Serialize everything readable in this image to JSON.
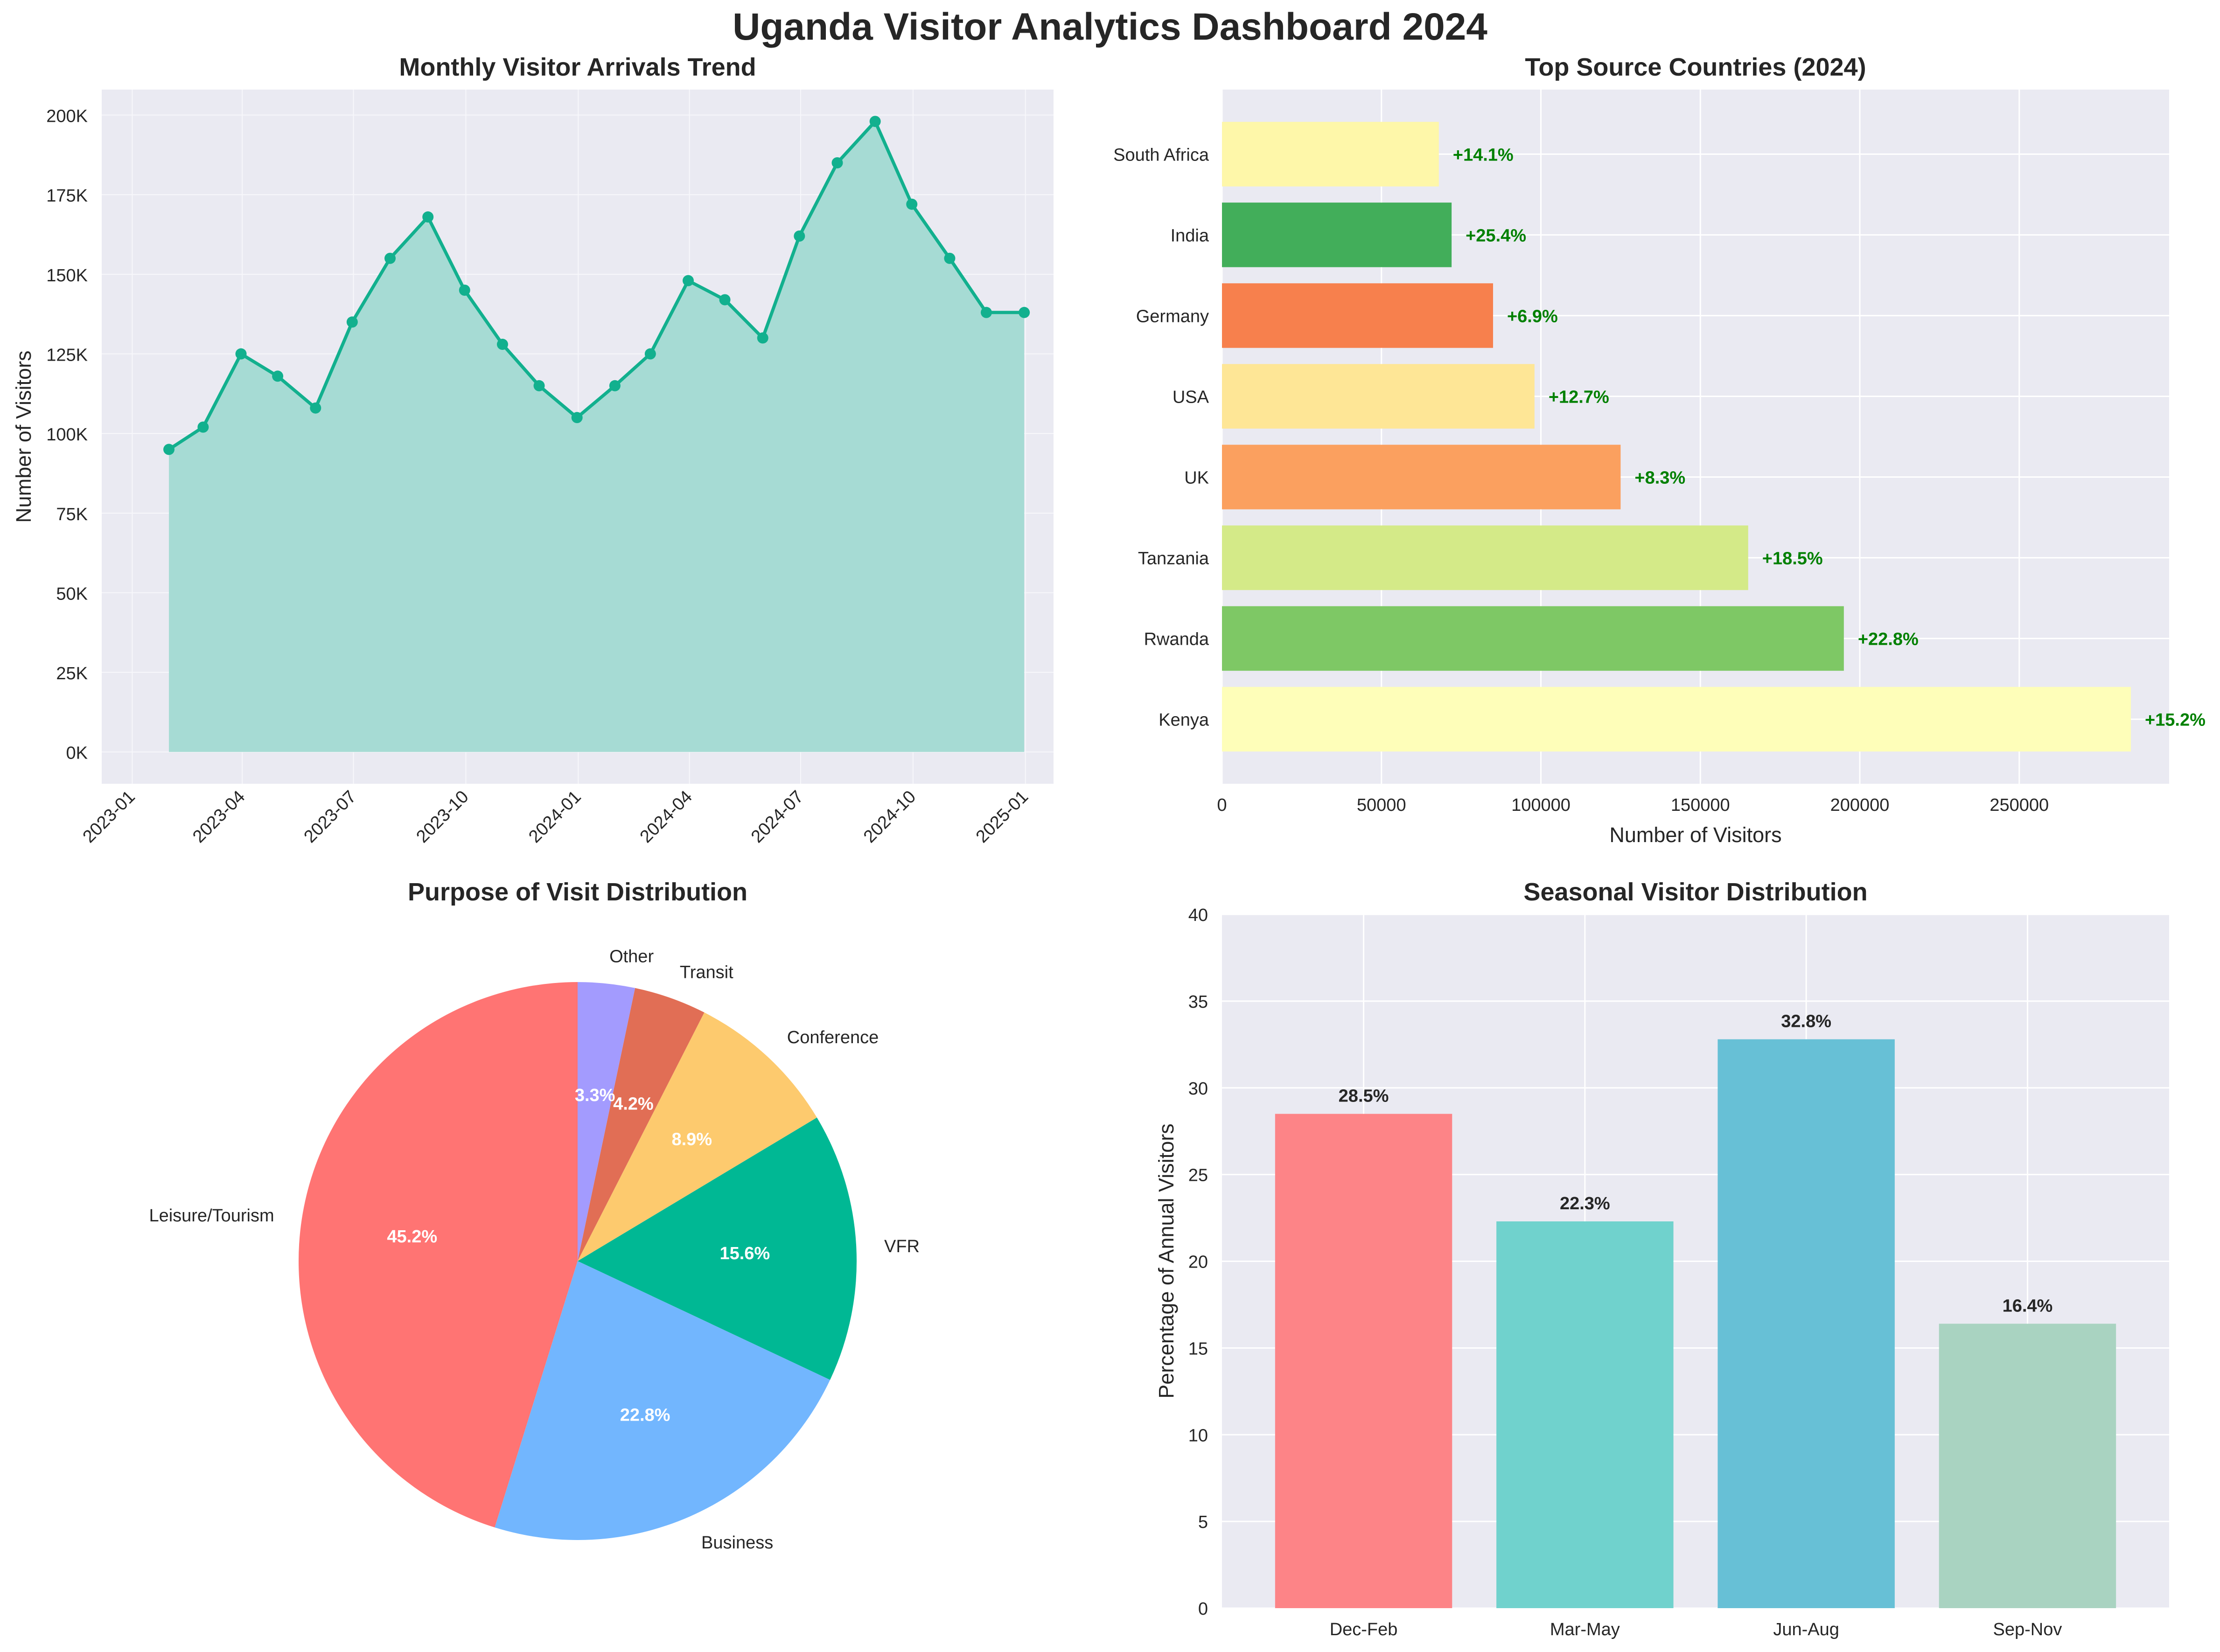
{
  "title": "Uganda Visitor Analytics Dashboard 2024",
  "colors": {
    "panel_bg": "#EAEAF2",
    "grid": "#FFFFFF",
    "text": "#262626",
    "line": "#12B08E",
    "area": "#A6DBD4",
    "growth_text": "#008000"
  },
  "chart_data": [
    {
      "type": "line",
      "title": "Monthly Visitor Arrivals Trend",
      "xlabel": "",
      "ylabel": "Number of Visitors",
      "x": [
        "2023-01-31",
        "2023-02-28",
        "2023-03-31",
        "2023-04-30",
        "2023-05-31",
        "2023-06-30",
        "2023-07-31",
        "2023-08-31",
        "2023-09-30",
        "2023-10-31",
        "2023-11-30",
        "2023-12-31",
        "2024-01-31",
        "2024-02-29",
        "2024-03-31",
        "2024-04-30",
        "2024-05-31",
        "2024-06-30",
        "2024-07-31",
        "2024-08-31",
        "2024-09-30",
        "2024-10-31",
        "2024-11-30",
        "2024-12-31"
      ],
      "series": [
        {
          "values": [
            95000,
            102000,
            125000,
            118000,
            108000,
            135000,
            155000,
            168000,
            145000,
            128000,
            115000,
            105000,
            115000,
            125000,
            148000,
            142000,
            130000,
            162000,
            185000,
            198000,
            172000,
            155000,
            138000,
            138000
          ]
        }
      ],
      "xlim": [
        "2022-12-07",
        "2025-01-24"
      ],
      "ylim": [
        -10000,
        208000
      ],
      "x_ticks": [
        "2023-01",
        "2023-04",
        "2023-07",
        "2023-10",
        "2024-01",
        "2024-04",
        "2024-07",
        "2024-10",
        "2025-01"
      ],
      "y_ticks": [
        0,
        25000,
        50000,
        75000,
        100000,
        125000,
        150000,
        175000,
        200000
      ],
      "y_tick_labels": [
        "0K",
        "25K",
        "50K",
        "75K",
        "100K",
        "125K",
        "150K",
        "175K",
        "200K"
      ],
      "fill_under": true,
      "markers": true,
      "grid": true
    },
    {
      "type": "bar",
      "orientation": "horizontal",
      "title": "Top Source Countries (2024)",
      "xlabel": "Number of Visitors",
      "ylabel": "",
      "categories": [
        "Kenya",
        "Rwanda",
        "Tanzania",
        "UK",
        "USA",
        "Germany",
        "India",
        "South Africa"
      ],
      "values": [
        285000,
        195000,
        165000,
        125000,
        98000,
        85000,
        72000,
        68000
      ],
      "growth_labels": [
        "+15.2%",
        "+22.8%",
        "+18.5%",
        "+8.3%",
        "+12.7%",
        "+6.9%",
        "+25.4%",
        "+14.1%"
      ],
      "bar_colors": [
        "#FEFEB9",
        "#7EC865",
        "#D4EA88",
        "#FBA05F",
        "#FEE696",
        "#F7804D",
        "#42AE5A",
        "#FEF7A9"
      ],
      "xlim": [
        0,
        297000
      ],
      "x_ticks": [
        0,
        50000,
        100000,
        150000,
        200000,
        250000
      ],
      "x_tick_labels": [
        "0",
        "50000",
        "100000",
        "150000",
        "200000",
        "250000"
      ],
      "grid": true
    },
    {
      "type": "pie",
      "title": "Purpose of Visit Distribution",
      "labels": [
        "Leisure/Tourism",
        "Business",
        "VFR",
        "Conference",
        "Transit",
        "Other"
      ],
      "values": [
        45.2,
        22.8,
        15.6,
        8.9,
        4.2,
        3.3
      ],
      "pct_labels": [
        "45.2%",
        "22.8%",
        "15.6%",
        "8.9%",
        "4.2%",
        "3.3%"
      ],
      "colors": [
        "#FF7473",
        "#72B6FE",
        "#00B894",
        "#FDCA6E",
        "#E16E55",
        "#A39BFE"
      ],
      "start_angle": 90,
      "direction": "counterclockwise"
    },
    {
      "type": "bar",
      "title": "Seasonal Visitor Distribution",
      "xlabel": "",
      "ylabel": "Percentage of Annual Visitors",
      "categories": [
        "Dec-Feb",
        "Mar-May",
        "Jun-Aug",
        "Sep-Nov"
      ],
      "values": [
        28.5,
        22.3,
        32.8,
        16.4
      ],
      "value_labels": [
        "28.5%",
        "22.3%",
        "32.8%",
        "16.4%"
      ],
      "bar_colors": [
        "#FD8487",
        "#70D2CD",
        "#67C0D6",
        "#A9D3C1"
      ],
      "ylim": [
        0,
        40
      ],
      "y_ticks": [
        0,
        5,
        10,
        15,
        20,
        25,
        30,
        35,
        40
      ],
      "y_tick_labels": [
        "0",
        "5",
        "10",
        "15",
        "20",
        "25",
        "30",
        "35",
        "40"
      ],
      "grid": true
    }
  ]
}
